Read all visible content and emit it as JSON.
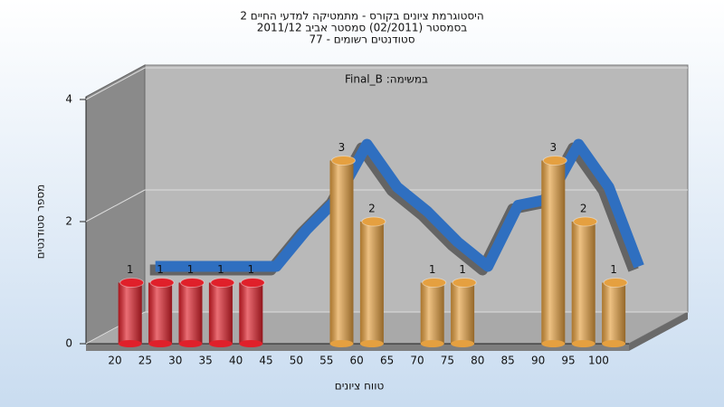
{
  "chart_data": {
    "type": "bar",
    "title": [
      "היסטוגרמת ציונים בקורס - מתמטיקה למדעי החיים 2",
      "בסמסטר (02/2011) סמסטר אביב 2011/12",
      "סטודנטים רשומים - 77"
    ],
    "annotation": "במשימה: Final_B",
    "x_label": "טווח ציונים",
    "y_label": "מספר סטודנטים",
    "categories": [
      "20",
      "25",
      "30",
      "35",
      "40",
      "45",
      "50",
      "55",
      "60",
      "65",
      "70",
      "75",
      "80",
      "85",
      "90",
      "95",
      "100"
    ],
    "values": [
      1,
      1,
      1,
      1,
      1,
      0,
      0,
      3,
      2,
      0,
      1,
      1,
      0,
      0,
      3,
      2,
      1
    ],
    "colors": [
      "#e0202a",
      "#e0202a",
      "#e0202a",
      "#e0202a",
      "#e0202a",
      "#e0202a",
      "#e0202a",
      "#e5a040",
      "#e5a040",
      "#e5a040",
      "#e5a040",
      "#e5a040",
      "#e5a040",
      "#e5a040",
      "#e5a040",
      "#e5a040",
      "#e5a040"
    ],
    "trend": {
      "color": "#2f6fc0",
      "values": [
        1,
        1,
        1,
        1,
        1,
        1.6,
        2.1,
        3,
        2.3,
        1.9,
        1.4,
        1,
        2,
        2.1,
        3,
        2.3,
        1
      ]
    },
    "ylim": [
      0,
      4
    ],
    "yticks": [
      0,
      2,
      4
    ],
    "grid": true
  }
}
